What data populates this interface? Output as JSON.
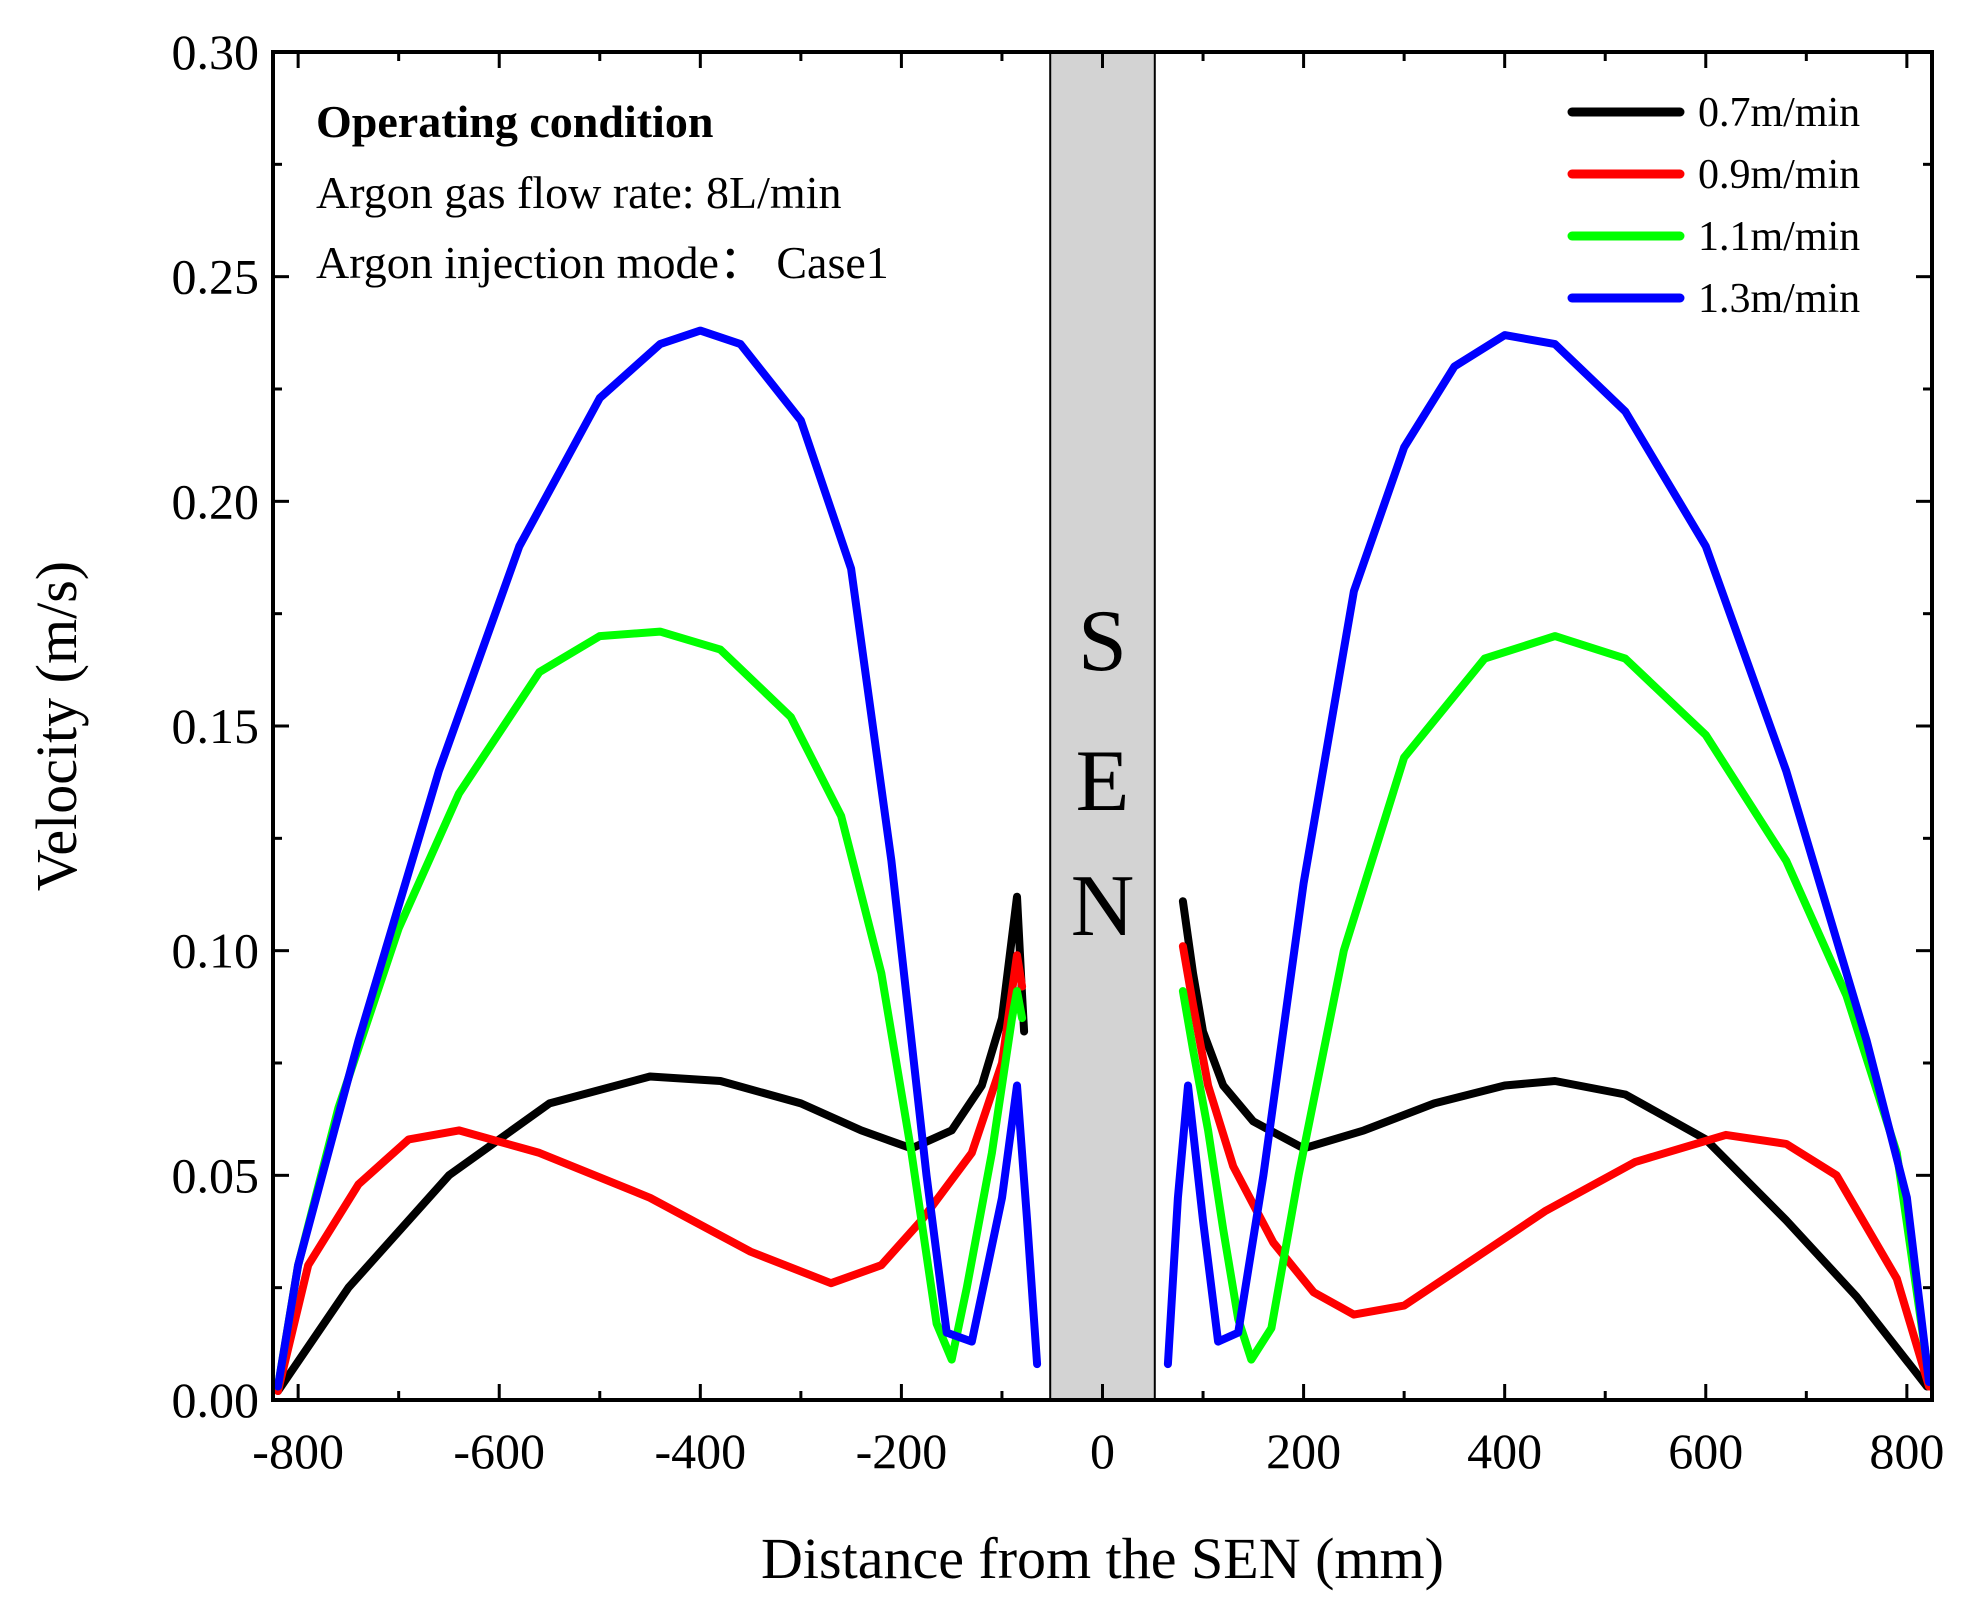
{
  "chart_data": {
    "type": "line",
    "title": "",
    "xlabel": "Distance from the SEN (mm)",
    "ylabel": "Velocity (m/s)",
    "xlim": [
      -825,
      825
    ],
    "ylim": [
      0,
      0.3
    ],
    "x_ticks": [
      -800,
      -600,
      -400,
      -200,
      0,
      200,
      400,
      600,
      800
    ],
    "x_tick_labels": [
      "-800",
      "-600",
      "-400",
      "-200",
      "0",
      "200",
      "400",
      "600",
      "800"
    ],
    "y_ticks": [
      0,
      0.05,
      0.1,
      0.15,
      0.2,
      0.25,
      0.3
    ],
    "y_tick_labels": [
      "0.00",
      "0.05",
      "0.10",
      "0.15",
      "0.20",
      "0.25",
      "0.30"
    ],
    "grid": false,
    "legend_position": "top-right",
    "sen_region": {
      "x_range": [
        -52,
        52
      ],
      "label_letters": [
        "S",
        "E",
        "N"
      ],
      "fill": "#d3d3d3"
    },
    "annotation": {
      "title": "Operating condition",
      "lines": [
        "Argon gas flow rate: 8L/min",
        "Argon injection mode： Case1"
      ]
    },
    "series": [
      {
        "name": "0.7m/min",
        "color": "#000000",
        "left": [
          [
            -820,
            0.002
          ],
          [
            -750,
            0.025
          ],
          [
            -650,
            0.05
          ],
          [
            -550,
            0.066
          ],
          [
            -450,
            0.072
          ],
          [
            -380,
            0.071
          ],
          [
            -300,
            0.066
          ],
          [
            -240,
            0.06
          ],
          [
            -190,
            0.056
          ],
          [
            -150,
            0.06
          ],
          [
            -120,
            0.07
          ],
          [
            -100,
            0.085
          ],
          [
            -85,
            0.112
          ],
          [
            -80,
            0.09
          ],
          [
            -78,
            0.082
          ]
        ],
        "right": [
          [
            80,
            0.111
          ],
          [
            90,
            0.095
          ],
          [
            100,
            0.082
          ],
          [
            120,
            0.07
          ],
          [
            150,
            0.062
          ],
          [
            200,
            0.056
          ],
          [
            260,
            0.06
          ],
          [
            330,
            0.066
          ],
          [
            400,
            0.07
          ],
          [
            450,
            0.071
          ],
          [
            520,
            0.068
          ],
          [
            600,
            0.058
          ],
          [
            680,
            0.04
          ],
          [
            750,
            0.023
          ],
          [
            820,
            0.003
          ]
        ]
      },
      {
        "name": "0.9m/min",
        "color": "#ff0000",
        "left": [
          [
            -820,
            0.002
          ],
          [
            -790,
            0.03
          ],
          [
            -740,
            0.048
          ],
          [
            -690,
            0.058
          ],
          [
            -640,
            0.06
          ],
          [
            -560,
            0.055
          ],
          [
            -450,
            0.045
          ],
          [
            -350,
            0.033
          ],
          [
            -270,
            0.026
          ],
          [
            -220,
            0.03
          ],
          [
            -180,
            0.04
          ],
          [
            -130,
            0.055
          ],
          [
            -100,
            0.075
          ],
          [
            -85,
            0.099
          ],
          [
            -80,
            0.092
          ]
        ],
        "right": [
          [
            80,
            0.101
          ],
          [
            90,
            0.088
          ],
          [
            105,
            0.07
          ],
          [
            130,
            0.052
          ],
          [
            170,
            0.035
          ],
          [
            210,
            0.024
          ],
          [
            250,
            0.019
          ],
          [
            300,
            0.021
          ],
          [
            360,
            0.03
          ],
          [
            440,
            0.042
          ],
          [
            530,
            0.053
          ],
          [
            620,
            0.059
          ],
          [
            680,
            0.057
          ],
          [
            730,
            0.05
          ],
          [
            790,
            0.027
          ],
          [
            822,
            0.003
          ]
        ]
      },
      {
        "name": "1.1m/min",
        "color": "#00ff00",
        "left": [
          [
            -820,
            0.003
          ],
          [
            -800,
            0.03
          ],
          [
            -760,
            0.065
          ],
          [
            -700,
            0.105
          ],
          [
            -640,
            0.135
          ],
          [
            -560,
            0.162
          ],
          [
            -500,
            0.17
          ],
          [
            -440,
            0.171
          ],
          [
            -380,
            0.167
          ],
          [
            -310,
            0.152
          ],
          [
            -260,
            0.13
          ],
          [
            -220,
            0.095
          ],
          [
            -190,
            0.055
          ],
          [
            -165,
            0.017
          ],
          [
            -150,
            0.009
          ],
          [
            -135,
            0.025
          ],
          [
            -110,
            0.055
          ],
          [
            -90,
            0.085
          ],
          [
            -85,
            0.091
          ],
          [
            -80,
            0.085
          ]
        ],
        "right": [
          [
            80,
            0.091
          ],
          [
            90,
            0.078
          ],
          [
            105,
            0.06
          ],
          [
            120,
            0.038
          ],
          [
            135,
            0.018
          ],
          [
            148,
            0.009
          ],
          [
            168,
            0.016
          ],
          [
            195,
            0.05
          ],
          [
            240,
            0.1
          ],
          [
            300,
            0.143
          ],
          [
            380,
            0.165
          ],
          [
            450,
            0.17
          ],
          [
            520,
            0.165
          ],
          [
            600,
            0.148
          ],
          [
            680,
            0.12
          ],
          [
            740,
            0.09
          ],
          [
            790,
            0.055
          ],
          [
            822,
            0.005
          ]
        ]
      },
      {
        "name": "1.3m/min",
        "color": "#0000ff",
        "left": [
          [
            -820,
            0.003
          ],
          [
            -800,
            0.03
          ],
          [
            -740,
            0.08
          ],
          [
            -660,
            0.14
          ],
          [
            -580,
            0.19
          ],
          [
            -500,
            0.223
          ],
          [
            -440,
            0.235
          ],
          [
            -400,
            0.238
          ],
          [
            -360,
            0.235
          ],
          [
            -300,
            0.218
          ],
          [
            -250,
            0.185
          ],
          [
            -210,
            0.12
          ],
          [
            -175,
            0.05
          ],
          [
            -155,
            0.015
          ],
          [
            -130,
            0.013
          ],
          [
            -100,
            0.045
          ],
          [
            -85,
            0.07
          ],
          [
            -75,
            0.04
          ],
          [
            -65,
            0.008
          ]
        ],
        "right": [
          [
            65,
            0.008
          ],
          [
            75,
            0.045
          ],
          [
            85,
            0.07
          ],
          [
            100,
            0.04
          ],
          [
            115,
            0.013
          ],
          [
            135,
            0.015
          ],
          [
            160,
            0.05
          ],
          [
            200,
            0.115
          ],
          [
            250,
            0.18
          ],
          [
            300,
            0.212
          ],
          [
            350,
            0.23
          ],
          [
            400,
            0.237
          ],
          [
            450,
            0.235
          ],
          [
            520,
            0.22
          ],
          [
            600,
            0.19
          ],
          [
            680,
            0.14
          ],
          [
            760,
            0.08
          ],
          [
            800,
            0.045
          ],
          [
            822,
            0.004
          ]
        ]
      }
    ]
  }
}
